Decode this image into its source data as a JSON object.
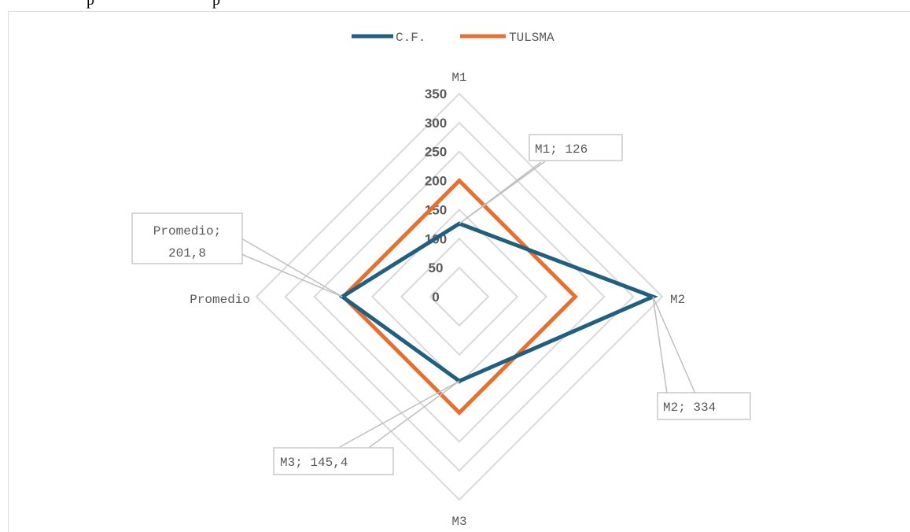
{
  "chart_data": {
    "type": "radar",
    "categories": [
      "M1",
      "M2",
      "M3",
      "Promedio"
    ],
    "series": [
      {
        "name": "C.F.",
        "color": "#1f5f7f",
        "values": [
          126,
          334,
          145.4,
          201.8
        ]
      },
      {
        "name": "TULSMA",
        "color": "#e8702f",
        "values": [
          200,
          200,
          200,
          200
        ]
      }
    ],
    "rlim": [
      0,
      350
    ],
    "ticks": [
      "0",
      "50",
      "100",
      "150",
      "200",
      "250",
      "300",
      "350"
    ],
    "gridline_color": "#d9d9d9",
    "legend_position": "top",
    "data_labels": [
      {
        "text": "M1; 126"
      },
      {
        "text": "M2; 334"
      },
      {
        "text": "M3; 145,4"
      },
      {
        "line1": "Promedio;",
        "line2": "201,8"
      }
    ]
  }
}
